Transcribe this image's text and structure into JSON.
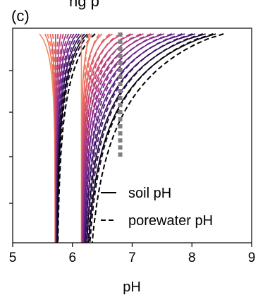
{
  "chart_data": {
    "type": "line",
    "panel_label": "(c)",
    "top_text": "ng p",
    "xlabel": "pH",
    "xlim": [
      5,
      9
    ],
    "x_ticks": [
      "5",
      "6",
      "7",
      "8",
      "9"
    ],
    "y_ticks_labeled": false,
    "grid": false,
    "legend": {
      "location": "lower-right",
      "entries": [
        {
          "label": "soil pH",
          "style": "solid"
        },
        {
          "label": "porewater pH",
          "style": "dashed"
        }
      ]
    },
    "reference_line": {
      "x": 6.8,
      "style": "dotted",
      "color": "#808080"
    },
    "colormap": [
      "#f48b5b",
      "#e8675f",
      "#d24d6c",
      "#b53c7c",
      "#8e3089",
      "#5f2391",
      "#2a1052",
      "#000000"
    ],
    "family_low": {
      "description_free": true,
      "soil_base_x": 5.76,
      "porewater_base_x": 5.78,
      "top_x_range": [
        5.5,
        6.3
      ]
    },
    "family_high": {
      "soil_base_x": 6.2,
      "porewater_base_x": 6.22,
      "top_x_range": [
        6.2,
        8.5
      ]
    }
  }
}
